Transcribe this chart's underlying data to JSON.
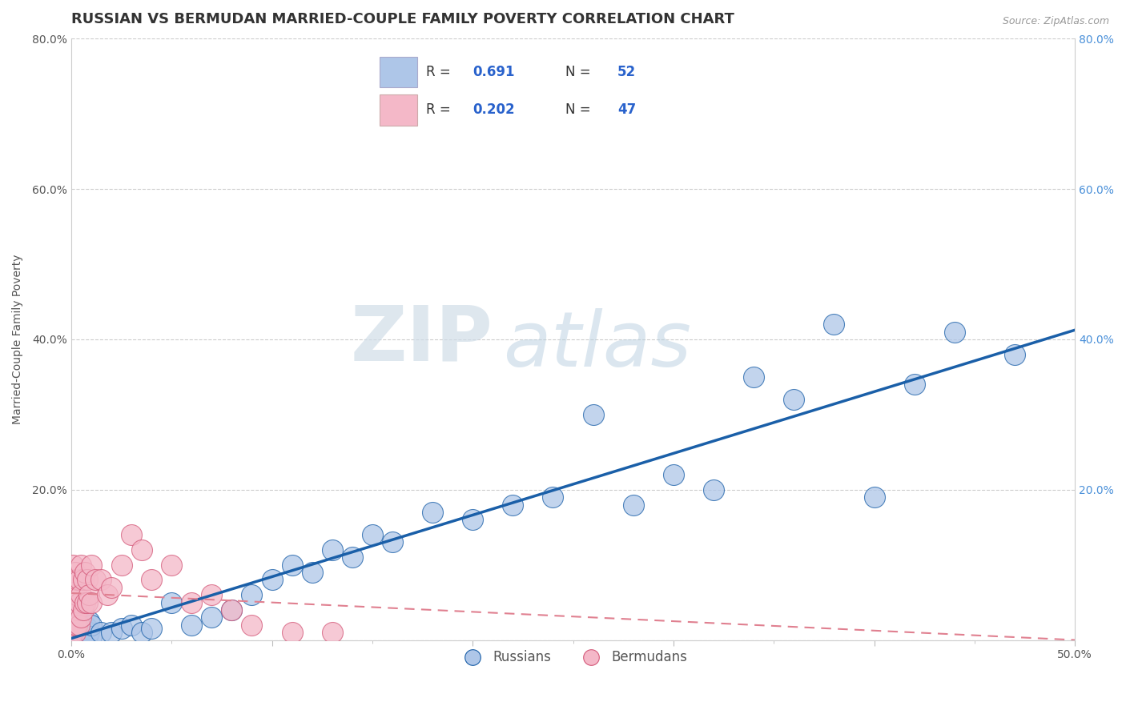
{
  "title": "RUSSIAN VS BERMUDAN MARRIED-COUPLE FAMILY POVERTY CORRELATION CHART",
  "source": "Source: ZipAtlas.com",
  "ylabel": "Married-Couple Family Poverty",
  "xlim": [
    0.0,
    0.5
  ],
  "ylim": [
    0.0,
    0.8
  ],
  "russian_R": 0.691,
  "russian_N": 52,
  "bermudan_R": 0.202,
  "bermudan_N": 47,
  "russian_color": "#aec6e8",
  "russian_line_color": "#1a5fa8",
  "bermudan_color": "#f4b8c8",
  "bermudan_line_color": "#d45a7a",
  "background_color": "#ffffff",
  "watermark_zip": "ZIP",
  "watermark_atlas": "atlas",
  "legend_val_color": "#2962cc",
  "legend_N_color": "#e8392a",
  "title_fontsize": 13,
  "axis_label_fontsize": 10,
  "tick_fontsize": 10,
  "russian_x": [
    0.001,
    0.002,
    0.002,
    0.003,
    0.003,
    0.004,
    0.004,
    0.005,
    0.005,
    0.006,
    0.006,
    0.007,
    0.007,
    0.008,
    0.008,
    0.009,
    0.009,
    0.01,
    0.01,
    0.015,
    0.02,
    0.025,
    0.03,
    0.035,
    0.04,
    0.05,
    0.06,
    0.07,
    0.08,
    0.09,
    0.1,
    0.11,
    0.12,
    0.13,
    0.14,
    0.15,
    0.16,
    0.18,
    0.2,
    0.22,
    0.24,
    0.26,
    0.28,
    0.3,
    0.32,
    0.34,
    0.36,
    0.38,
    0.4,
    0.42,
    0.44,
    0.47
  ],
  "russian_y": [
    0.01,
    0.005,
    0.02,
    0.01,
    0.03,
    0.005,
    0.015,
    0.01,
    0.02,
    0.005,
    0.015,
    0.01,
    0.02,
    0.005,
    0.015,
    0.01,
    0.025,
    0.005,
    0.02,
    0.01,
    0.01,
    0.015,
    0.02,
    0.01,
    0.015,
    0.05,
    0.02,
    0.03,
    0.04,
    0.06,
    0.08,
    0.1,
    0.09,
    0.12,
    0.11,
    0.14,
    0.13,
    0.17,
    0.16,
    0.18,
    0.19,
    0.3,
    0.18,
    0.22,
    0.2,
    0.35,
    0.32,
    0.42,
    0.19,
    0.34,
    0.41,
    0.38
  ],
  "bermudan_x": [
    0.001,
    0.001,
    0.001,
    0.001,
    0.001,
    0.001,
    0.001,
    0.001,
    0.002,
    0.002,
    0.002,
    0.002,
    0.002,
    0.003,
    0.003,
    0.003,
    0.003,
    0.004,
    0.004,
    0.004,
    0.005,
    0.005,
    0.005,
    0.006,
    0.006,
    0.007,
    0.007,
    0.008,
    0.008,
    0.009,
    0.01,
    0.01,
    0.012,
    0.015,
    0.018,
    0.02,
    0.025,
    0.03,
    0.035,
    0.04,
    0.05,
    0.06,
    0.07,
    0.08,
    0.09,
    0.11,
    0.13
  ],
  "bermudan_y": [
    0.01,
    0.02,
    0.03,
    0.04,
    0.05,
    0.06,
    0.08,
    0.1,
    0.01,
    0.02,
    0.04,
    0.06,
    0.09,
    0.02,
    0.04,
    0.06,
    0.08,
    0.02,
    0.05,
    0.08,
    0.03,
    0.06,
    0.1,
    0.04,
    0.08,
    0.05,
    0.09,
    0.05,
    0.08,
    0.06,
    0.05,
    0.1,
    0.08,
    0.08,
    0.06,
    0.07,
    0.1,
    0.14,
    0.12,
    0.08,
    0.1,
    0.05,
    0.06,
    0.04,
    0.02,
    0.01,
    0.01
  ]
}
